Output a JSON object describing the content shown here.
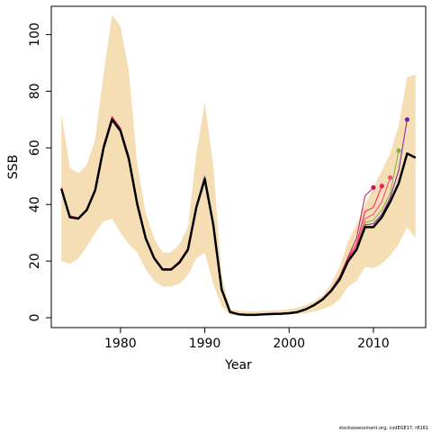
{
  "chart_data": {
    "type": "line",
    "xlabel": "Year",
    "ylabel": "SSB",
    "xlim": [
      1971.8,
      2016.2
    ],
    "ylim": [
      -3.5,
      110
    ],
    "xticks": [
      1980,
      1990,
      2000,
      2010
    ],
    "yticks": [
      0,
      20,
      40,
      60,
      80,
      100
    ],
    "grid": false,
    "band": {
      "x": [
        1973,
        1974,
        1975,
        1976,
        1977,
        1978,
        1979,
        1980,
        1981,
        1982,
        1983,
        1984,
        1985,
        1986,
        1987,
        1988,
        1989,
        1990,
        1991,
        1992,
        1993,
        1994,
        1995,
        1996,
        1997,
        1998,
        1999,
        2000,
        2001,
        2002,
        2003,
        2004,
        2005,
        2006,
        2007,
        2008,
        2009,
        2010,
        2011,
        2012,
        2013,
        2014,
        2015
      ],
      "upper": [
        72,
        53,
        51,
        54,
        63,
        86,
        107,
        103,
        87,
        54,
        37,
        28,
        23,
        23,
        26,
        32,
        58,
        76,
        54,
        15,
        3,
        2.5,
        2.2,
        2.2,
        2.5,
        2.5,
        2.6,
        3,
        3.5,
        4.5,
        6,
        8,
        12,
        18,
        27,
        33,
        40,
        46,
        52,
        58,
        68,
        85,
        86
      ],
      "lower": [
        20,
        19,
        21,
        25,
        30,
        34,
        35,
        30,
        26,
        23,
        17,
        13,
        11,
        11,
        12,
        15,
        21,
        23,
        12,
        4,
        1,
        0.8,
        0.7,
        0.7,
        0.8,
        0.9,
        1,
        1.1,
        1.3,
        1.6,
        2.2,
        3,
        4.2,
        6.5,
        11,
        13,
        18,
        17.5,
        19,
        22,
        26,
        32,
        28
      ],
      "color": "#f5deb3"
    },
    "series": [
      {
        "color": "#000000",
        "x": [
          1973,
          1974,
          1975,
          1976,
          1977,
          1978,
          1979,
          1980,
          1981,
          1982,
          1983,
          1984,
          1985,
          1986,
          1987,
          1988,
          1989,
          1990,
          1991,
          1992,
          1993,
          1994,
          1995,
          1996,
          1997,
          1998,
          1999,
          2000,
          2001,
          2002,
          2003,
          2004,
          2005,
          2006,
          2007,
          2008,
          2009,
          2010,
          2011,
          2012,
          2013,
          2014,
          2015
        ],
        "y": [
          45.5,
          35.5,
          35,
          38,
          45,
          60,
          70,
          66,
          56,
          40,
          28,
          21,
          17,
          17,
          19.5,
          24,
          39,
          49,
          33,
          10,
          2,
          1.2,
          1,
          1,
          1.2,
          1.3,
          1.4,
          1.6,
          2,
          3,
          4.5,
          6.5,
          9.5,
          13.5,
          20,
          24,
          32,
          32,
          35.5,
          41,
          47.5,
          58,
          56.5
        ]
      },
      {
        "color": "#c2185b",
        "x": [
          1973,
          1974,
          1975,
          1976,
          1977,
          1978,
          1979,
          1980,
          1981,
          1982,
          1983,
          1984,
          1985,
          1986,
          1987,
          1988,
          1989,
          1990,
          1991,
          1992,
          1993,
          1994,
          1995,
          1996,
          1997,
          1998,
          1999,
          2000,
          2001,
          2002,
          2003,
          2004,
          2005,
          2006,
          2007,
          2008,
          2009,
          2010
        ],
        "y": [
          46,
          36,
          35.3,
          38.4,
          45.6,
          61,
          71,
          67,
          57,
          41,
          28.5,
          21.5,
          17.3,
          17.3,
          20,
          24.5,
          39.5,
          50,
          33.5,
          10.5,
          2.2,
          1.3,
          1.1,
          1.1,
          1.3,
          1.4,
          1.5,
          1.7,
          2.1,
          3.1,
          4.7,
          6.8,
          10,
          14.5,
          21.5,
          28,
          43,
          46
        ]
      },
      {
        "color": "#e91e63",
        "x": [
          1973,
          1974,
          1975,
          1976,
          1977,
          1978,
          1979,
          1980,
          1981,
          1982,
          1983,
          1984,
          1985,
          1986,
          1987,
          1988,
          1989,
          1990,
          1991,
          1992,
          1993,
          1994,
          1995,
          1996,
          1997,
          1998,
          1999,
          2000,
          2001,
          2002,
          2003,
          2004,
          2005,
          2006,
          2007,
          2008,
          2009,
          2010,
          2011
        ],
        "y": [
          45.8,
          35.8,
          35.2,
          38.2,
          45.4,
          60.6,
          70.6,
          66.6,
          56.6,
          40.6,
          28.3,
          21.3,
          17.2,
          17.2,
          19.8,
          24.3,
          39.3,
          49.6,
          33.3,
          10.3,
          2.1,
          1.25,
          1.05,
          1.05,
          1.25,
          1.35,
          1.45,
          1.65,
          2.05,
          3.05,
          4.6,
          6.7,
          9.8,
          14,
          21,
          26,
          37.5,
          39,
          46.5
        ]
      },
      {
        "color": "#ff4081",
        "x": [
          1973,
          1974,
          1975,
          1976,
          1977,
          1978,
          1979,
          1980,
          1981,
          1982,
          1983,
          1984,
          1985,
          1986,
          1987,
          1988,
          1989,
          1990,
          1991,
          1992,
          1993,
          1994,
          1995,
          1996,
          1997,
          1998,
          1999,
          2000,
          2001,
          2002,
          2003,
          2004,
          2005,
          2006,
          2007,
          2008,
          2009,
          2010,
          2011,
          2012
        ],
        "y": [
          45.7,
          35.7,
          35.1,
          38.1,
          45.3,
          60.4,
          70.4,
          66.4,
          56.4,
          40.4,
          28.2,
          21.2,
          17.1,
          17.1,
          19.7,
          24.2,
          39.2,
          49.4,
          33.2,
          10.2,
          2.05,
          1.22,
          1.02,
          1.02,
          1.22,
          1.32,
          1.42,
          1.62,
          2.02,
          3.02,
          4.55,
          6.6,
          9.7,
          13.8,
          20.6,
          25,
          35,
          36.5,
          41,
          49.5
        ]
      },
      {
        "color": "#7cb342",
        "x": [
          1973,
          1974,
          1975,
          1976,
          1977,
          1978,
          1979,
          1980,
          1981,
          1982,
          1983,
          1984,
          1985,
          1986,
          1987,
          1988,
          1989,
          1990,
          1991,
          1992,
          1993,
          1994,
          1995,
          1996,
          1997,
          1998,
          1999,
          2000,
          2001,
          2002,
          2003,
          2004,
          2005,
          2006,
          2007,
          2008,
          2009,
          2010,
          2011,
          2012,
          2013
        ],
        "y": [
          45.6,
          35.6,
          35.05,
          38.05,
          45.2,
          60.2,
          70.2,
          66.2,
          56.2,
          40.2,
          28.1,
          21.1,
          17.05,
          17.05,
          19.6,
          24.1,
          39.1,
          49.2,
          33.1,
          10.1,
          2.02,
          1.21,
          1.01,
          1.01,
          1.21,
          1.31,
          1.41,
          1.61,
          2.01,
          3.01,
          4.52,
          6.55,
          9.6,
          13.6,
          20.3,
          24.5,
          33.5,
          34.5,
          38,
          44,
          59
        ]
      },
      {
        "color": "#7b1fa2",
        "x": [
          1973,
          1974,
          1975,
          1976,
          1977,
          1978,
          1979,
          1980,
          1981,
          1982,
          1983,
          1984,
          1985,
          1986,
          1987,
          1988,
          1989,
          1990,
          1991,
          1992,
          1993,
          1994,
          1995,
          1996,
          1997,
          1998,
          1999,
          2000,
          2001,
          2002,
          2003,
          2004,
          2005,
          2006,
          2007,
          2008,
          2009,
          2010,
          2011,
          2012,
          2013,
          2014
        ],
        "y": [
          45.55,
          35.55,
          35.02,
          38.02,
          45.1,
          60.1,
          70.1,
          66.1,
          56.1,
          40.1,
          28.05,
          21.05,
          17.02,
          17.02,
          19.55,
          24.05,
          39.05,
          49.1,
          33.05,
          10.05,
          2.01,
          1.2,
          1.0,
          1.0,
          1.2,
          1.3,
          1.4,
          1.6,
          2.0,
          3.0,
          4.5,
          6.5,
          9.55,
          13.55,
          20.15,
          24.2,
          32.8,
          33.2,
          36.5,
          42.5,
          52,
          70
        ]
      }
    ],
    "credit": "stockassessment.org, codEGE17, r8161"
  }
}
